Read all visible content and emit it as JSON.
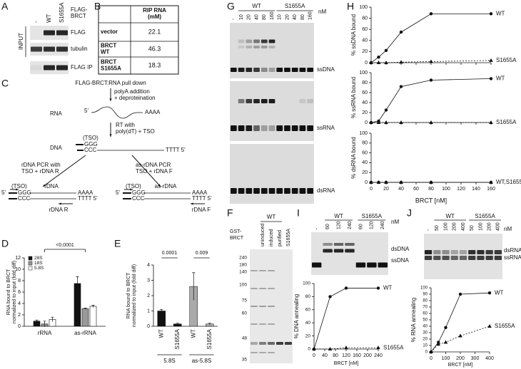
{
  "panels": {
    "A": {
      "label": "A",
      "header": [
        "FLAG-",
        "BRCT"
      ],
      "lanes": [
        "-",
        "WT",
        "S1655A"
      ],
      "group": "INPUT",
      "rows": [
        "FLAG",
        "tubulin",
        "FLAG IP"
      ]
    },
    "B": {
      "label": "B",
      "header": [
        "RIP RNA",
        "(mM)"
      ],
      "rows": [
        [
          [
            "vector"
          ],
          "22.1"
        ],
        [
          [
            "BRCT",
            "WT"
          ],
          "46.3"
        ],
        [
          [
            "BRCT",
            "S1655A"
          ],
          "18.3"
        ]
      ]
    },
    "C": {
      "label": "C",
      "step1": "FLAG-BRCT:RNA pull down",
      "step2": [
        "polyA addition",
        "+ deproteination"
      ],
      "rna": "RNA",
      "five": "5'",
      "polyA": "AAAA",
      "step3": [
        "RT with",
        "poly(dT) + TSO"
      ],
      "dna": "DNA",
      "tso": "(TSO)",
      "ggg": "GGG",
      "ccc": "CCC",
      "tttt": "TTTT 5'",
      "left_pcr": [
        "rDNA PCR with",
        "TSO + rDNA R"
      ],
      "right_pcr": [
        "as-rDNA PCR",
        "TSO + rDNA F"
      ],
      "left_product": "rDNA",
      "right_product": "as-rDNA",
      "left_primer": "rDNA R",
      "right_primer": "rDNA F"
    },
    "D": {
      "label": "D",
      "type": "bar",
      "ylabel": [
        "RNA bound to BRCT",
        "normalized to input (fold diff)"
      ],
      "categories": [
        "rRNA",
        "as-rRNA"
      ],
      "series": [
        {
          "name": "28S",
          "color": "#111111",
          "values": [
            0.9,
            7.5
          ],
          "errors": [
            0.2,
            1.2
          ]
        },
        {
          "name": "18S",
          "color": "#999999",
          "values": [
            0.4,
            3.1
          ],
          "errors": [
            0.5,
            0.1
          ]
        },
        {
          "name": "5.8S",
          "color": "#ffffff",
          "values": [
            1.2,
            3.5
          ],
          "errors": [
            0.4,
            0.2
          ]
        }
      ],
      "ylim": [
        0,
        12
      ],
      "yticks": [
        0,
        2,
        4,
        6,
        8,
        10,
        12
      ],
      "annotation": "<0.0001"
    },
    "E": {
      "label": "E",
      "type": "bar",
      "ylabel": [
        "RNA bound to BRCT",
        "normalized to input (fold diff)"
      ],
      "categories": [
        "WT",
        "S1655A",
        "WT",
        "S1655A"
      ],
      "colors": [
        "#111111",
        "#111111",
        "#aaaaaa",
        "#aaaaaa"
      ],
      "values": [
        1.0,
        0.15,
        2.6,
        0.15
      ],
      "errors": [
        0.1,
        0.05,
        0.9,
        0.05
      ],
      "groups": [
        "5.8S",
        "as-5.8S"
      ],
      "pvalues": [
        "0.0001",
        "0.009"
      ],
      "ylim": [
        0,
        4
      ],
      "yticks": [
        0,
        1,
        2,
        3,
        4
      ]
    },
    "F": {
      "label": "F",
      "header": "WT",
      "protein": [
        "GST-",
        "BRCT"
      ],
      "lanes": [
        "uninduced",
        "induced",
        "purified",
        "S1655A"
      ],
      "markers": [
        "240",
        "180",
        "140",
        "100",
        "75",
        "60",
        "48",
        "35"
      ]
    },
    "G": {
      "label": "G",
      "groups": [
        "WT",
        "S1655A"
      ],
      "lanes": [
        "-",
        "10",
        "20",
        "40",
        "80",
        "160",
        "10",
        "20",
        "40",
        "80",
        "160"
      ],
      "unit": "nM",
      "bands": [
        "ssDNA",
        "ssRNA",
        "dsRNA"
      ]
    },
    "H": {
      "label": "H",
      "xlabel": "BRCT [nM]",
      "xlim": [
        0,
        160
      ],
      "xticks": [
        0,
        20,
        40,
        60,
        80,
        100,
        120,
        140,
        160
      ],
      "plots": [
        {
          "type": "line",
          "ylabel": "% ssDNA bound",
          "ylim": [
            0,
            100
          ],
          "yticks": [
            0,
            20,
            40,
            60,
            80,
            100
          ],
          "x": [
            0,
            10,
            20,
            40,
            80,
            160
          ],
          "series": [
            {
              "name": "WT",
              "marker": "circle",
              "values": [
                0,
                10,
                22,
                55,
                88,
                88
              ]
            },
            {
              "name": "S1655A",
              "marker": "triangle",
              "dash": true,
              "values": [
                0,
                0,
                0,
                1,
                2,
                4
              ]
            }
          ]
        },
        {
          "type": "line",
          "ylabel": "% ssRNA bound",
          "ylim": [
            0,
            100
          ],
          "yticks": [
            0,
            20,
            40,
            60,
            80,
            100
          ],
          "x": [
            0,
            10,
            20,
            40,
            80,
            160
          ],
          "series": [
            {
              "name": "WT",
              "marker": "circle",
              "values": [
                0,
                3,
                25,
                72,
                85,
                88
              ]
            },
            {
              "name": "S1655A",
              "marker": "triangle",
              "dash": true,
              "values": [
                0,
                0,
                0,
                0,
                0,
                0
              ]
            }
          ]
        },
        {
          "type": "line",
          "ylabel": "% dsRNA bound",
          "ylim": [
            0,
            100
          ],
          "yticks": [
            0,
            20,
            40,
            60,
            80,
            100
          ],
          "x": [
            0,
            10,
            20,
            40,
            80,
            160
          ],
          "label": "WT,S1655A",
          "series": [
            {
              "marker": "circle",
              "values": [
                0,
                0,
                0,
                0,
                0,
                0
              ]
            },
            {
              "marker": "triangle",
              "dash": true,
              "values": [
                0,
                0,
                0,
                0,
                0,
                0
              ]
            }
          ]
        }
      ]
    },
    "I": {
      "label": "I",
      "groups": [
        "WT",
        "S1655A"
      ],
      "lanes": [
        "-",
        "60",
        "120",
        "240",
        "60",
        "120",
        "240"
      ],
      "unit": "nM",
      "bands": [
        "dsDNA",
        "ssDNA"
      ],
      "chart": {
        "type": "line",
        "ylabel": "% DNA annealing",
        "xlabel": "BRCT [nM]",
        "xlim": [
          0,
          240
        ],
        "xticks": [
          0,
          40,
          80,
          120,
          160,
          200,
          240
        ],
        "ylim": [
          0,
          100
        ],
        "yticks": [
          0,
          20,
          40,
          60,
          80,
          100
        ],
        "x": [
          0,
          60,
          120,
          240
        ],
        "series": [
          {
            "name": "WT",
            "marker": "circle",
            "values": [
              0,
              80,
              93,
              93
            ]
          },
          {
            "name": "S1655A",
            "marker": "triangle",
            "dash": true,
            "values": [
              0,
              0,
              2,
              2
            ]
          }
        ]
      }
    },
    "J": {
      "label": "J",
      "groups": [
        "WT",
        "S1655A"
      ],
      "lanes": [
        "-",
        "50",
        "100",
        "200",
        "400",
        "50",
        "100",
        "200",
        "400"
      ],
      "unit": "nM",
      "bands": [
        "dsRNA",
        "ssRNA"
      ],
      "chart": {
        "type": "line",
        "ylabel": "% RNA annealing",
        "xlabel": "BRCT [nM]",
        "xlim": [
          0,
          400
        ],
        "xticks": [
          0,
          100,
          200,
          300,
          400
        ],
        "ylim": [
          0,
          100
        ],
        "yticks": [
          0,
          10,
          20,
          30,
          40,
          50,
          60,
          70,
          80,
          90,
          100
        ],
        "x": [
          0,
          50,
          100,
          200,
          400
        ],
        "series": [
          {
            "name": "WT",
            "marker": "circle",
            "values": [
              0,
              15,
              38,
              90,
              92
            ]
          },
          {
            "name": "S1655A",
            "marker": "triangle",
            "dash": true,
            "values": [
              0,
              12,
              15,
              25,
              40
            ]
          }
        ]
      }
    }
  }
}
